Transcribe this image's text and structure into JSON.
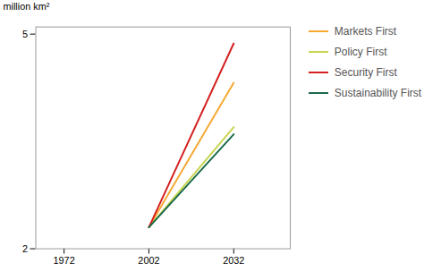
{
  "chart_data": {
    "type": "line",
    "ylabel": "million km²",
    "x": [
      2002,
      2032
    ],
    "series": [
      {
        "name": "Markets First",
        "color": "#f5a832",
        "values": [
          2.3,
          4.32
        ]
      },
      {
        "name": "Policy First",
        "color": "#c8d44e",
        "values": [
          2.3,
          3.7
        ]
      },
      {
        "name": "Security First",
        "color": "#d42020",
        "values": [
          2.3,
          4.87
        ]
      },
      {
        "name": "Sustainability First",
        "color": "#1a6b4a",
        "values": [
          2.3,
          3.6
        ]
      }
    ],
    "xlim": [
      1962,
      2052
    ],
    "xticks": [
      1972,
      2002,
      2032
    ],
    "ylim": [
      2.0,
      5.1
    ],
    "yticks": [
      2,
      5
    ],
    "grid": false,
    "legend": "right"
  }
}
